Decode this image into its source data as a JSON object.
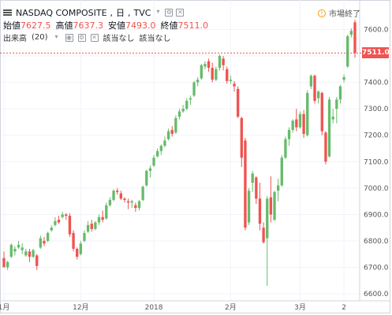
{
  "header": {
    "symbol": "NASDAQ COMPOSITE",
    "interval": "日",
    "source": "TVC",
    "open_label": "始値",
    "open": "7627.5",
    "high_label": "高値",
    "high": "7637.3",
    "low_label": "安値",
    "low": "7493.0",
    "close_label": "終値",
    "close": "7511.0",
    "volume_label": "出来高",
    "volume_period": "(20)",
    "na1": "該当なし",
    "na2": "該当なし"
  },
  "status": {
    "icon": "clock-icon",
    "text": "市場終了"
  },
  "price_tag": "7511.0",
  "colors": {
    "up": "#66bb6a",
    "down": "#ef5350",
    "grid": "#f0f3fa",
    "axis_text": "#555555"
  },
  "chart_data": {
    "type": "candlestick",
    "y_ticks": [
      6600,
      6700,
      6800,
      6900,
      7000,
      7100,
      7200,
      7300,
      7400,
      7500,
      7600
    ],
    "ylim": [
      6580,
      7700
    ],
    "x_ticks": [
      {
        "label": "1月",
        "index": 0
      },
      {
        "label": "12月",
        "index": 21
      },
      {
        "label": "2018",
        "index": 41
      },
      {
        "label": "2月",
        "index": 62
      },
      {
        "label": "3月",
        "index": 81
      },
      {
        "label": "2",
        "index": 93
      }
    ],
    "last_price": 7511.0,
    "candles": [
      [
        6735,
        6760,
        6700,
        6700
      ],
      [
        6700,
        6725,
        6690,
        6720
      ],
      [
        6740,
        6790,
        6735,
        6785
      ],
      [
        6760,
        6780,
        6745,
        6770
      ],
      [
        6775,
        6800,
        6770,
        6785
      ],
      [
        6765,
        6790,
        6750,
        6775
      ],
      [
        6745,
        6770,
        6740,
        6760
      ],
      [
        6760,
        6770,
        6720,
        6740
      ],
      [
        6740,
        6770,
        6735,
        6765
      ],
      [
        6745,
        6750,
        6690,
        6705
      ],
      [
        6775,
        6820,
        6770,
        6810
      ],
      [
        6800,
        6815,
        6780,
        6790
      ],
      [
        6800,
        6835,
        6795,
        6830
      ],
      [
        6840,
        6860,
        6835,
        6850
      ],
      [
        6860,
        6890,
        6855,
        6875
      ],
      [
        6880,
        6895,
        6865,
        6870
      ],
      [
        6890,
        6910,
        6885,
        6900
      ],
      [
        6900,
        6905,
        6880,
        6895
      ],
      [
        6895,
        6905,
        6815,
        6825
      ],
      [
        6830,
        6840,
        6760,
        6770
      ],
      [
        6770,
        6775,
        6730,
        6740
      ],
      [
        6750,
        6800,
        6745,
        6790
      ],
      [
        6800,
        6840,
        6795,
        6830
      ],
      [
        6835,
        6875,
        6830,
        6860
      ],
      [
        6865,
        6880,
        6835,
        6845
      ],
      [
        6845,
        6875,
        6840,
        6870
      ],
      [
        6870,
        6900,
        6860,
        6890
      ],
      [
        6890,
        6915,
        6870,
        6880
      ],
      [
        6885,
        6945,
        6880,
        6935
      ],
      [
        6935,
        6965,
        6930,
        6955
      ],
      [
        6955,
        6995,
        6950,
        6990
      ],
      [
        6990,
        7000,
        6975,
        6985
      ],
      [
        6980,
        6990,
        6955,
        6960
      ],
      [
        6960,
        6965,
        6945,
        6955
      ],
      [
        6950,
        6960,
        6920,
        6945
      ],
      [
        6945,
        6955,
        6925,
        6950
      ],
      [
        6935,
        6945,
        6910,
        6925
      ],
      [
        6925,
        6955,
        6915,
        6950
      ],
      [
        6955,
        7010,
        6950,
        7005
      ],
      [
        7010,
        7070,
        7005,
        7065
      ],
      [
        7065,
        7085,
        7040,
        7075
      ],
      [
        7085,
        7125,
        7080,
        7115
      ],
      [
        7120,
        7150,
        7115,
        7140
      ],
      [
        7140,
        7165,
        7125,
        7160
      ],
      [
        7160,
        7195,
        7155,
        7180
      ],
      [
        7185,
        7225,
        7180,
        7215
      ],
      [
        7220,
        7235,
        7195,
        7205
      ],
      [
        7210,
        7275,
        7205,
        7265
      ],
      [
        7270,
        7300,
        7260,
        7290
      ],
      [
        7290,
        7315,
        7285,
        7300
      ],
      [
        7300,
        7340,
        7295,
        7330
      ],
      [
        7335,
        7350,
        7315,
        7340
      ],
      [
        7350,
        7405,
        7345,
        7400
      ],
      [
        7400,
        7420,
        7385,
        7410
      ],
      [
        7415,
        7470,
        7410,
        7465
      ],
      [
        7460,
        7480,
        7450,
        7470
      ],
      [
        7480,
        7490,
        7440,
        7455
      ],
      [
        7455,
        7475,
        7400,
        7410
      ],
      [
        7410,
        7460,
        7405,
        7450
      ],
      [
        7455,
        7505,
        7445,
        7500
      ],
      [
        7490,
        7500,
        7445,
        7465
      ],
      [
        7450,
        7460,
        7395,
        7405
      ],
      [
        7405,
        7425,
        7395,
        7410
      ],
      [
        7395,
        7405,
        7365,
        7385
      ],
      [
        7375,
        7385,
        7265,
        7270
      ],
      [
        7265,
        7270,
        7080,
        7115
      ],
      [
        7180,
        7190,
        6840,
        6850
      ],
      [
        6870,
        7000,
        6860,
        6990
      ],
      [
        7020,
        7065,
        6985,
        7055
      ],
      [
        7040,
        7045,
        6940,
        6960
      ],
      [
        6960,
        7020,
        6840,
        6865
      ],
      [
        6850,
        6870,
        6790,
        6795
      ],
      [
        6810,
        6970,
        6630,
        6960
      ],
      [
        6965,
        7045,
        6870,
        6900
      ],
      [
        6880,
        6990,
        6875,
        6985
      ],
      [
        6990,
        7035,
        6950,
        7010
      ],
      [
        7010,
        7125,
        7005,
        7115
      ],
      [
        7115,
        7195,
        7110,
        7185
      ],
      [
        7185,
        7230,
        7160,
        7220
      ],
      [
        7220,
        7260,
        7210,
        7255
      ],
      [
        7260,
        7300,
        7215,
        7230
      ],
      [
        7230,
        7290,
        7225,
        7280
      ],
      [
        7280,
        7295,
        7190,
        7205
      ],
      [
        7200,
        7370,
        7195,
        7360
      ],
      [
        7385,
        7430,
        7375,
        7425
      ],
      [
        7425,
        7430,
        7320,
        7330
      ],
      [
        7340,
        7370,
        7320,
        7365
      ],
      [
        7360,
        7365,
        7200,
        7215
      ],
      [
        7210,
        7215,
        7090,
        7100
      ],
      [
        7120,
        7345,
        7115,
        7335
      ],
      [
        7260,
        7300,
        7245,
        7270
      ],
      [
        7300,
        7345,
        7245,
        7335
      ],
      [
        7335,
        7390,
        7320,
        7385
      ],
      [
        7410,
        7430,
        7400,
        7420
      ],
      [
        7460,
        7580,
        7455,
        7575
      ],
      [
        7580,
        7605,
        7570,
        7595
      ],
      [
        7627.5,
        7637.3,
        7493,
        7511
      ]
    ]
  }
}
